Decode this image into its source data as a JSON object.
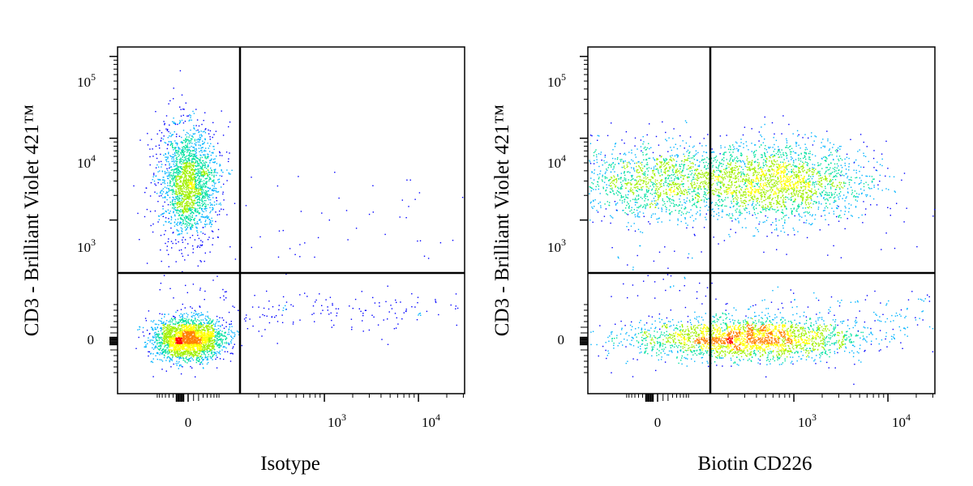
{
  "chart_data": [
    {
      "type": "scatter",
      "subtype": "flow-cytometry-pseudocolor-density-dot-plot",
      "xlabel": "Isotype",
      "ylabel": "CD3 - Brilliant Violet 421™",
      "x_scale": "biexponential",
      "y_scale": "biexponential",
      "x_tick_labels": [
        {
          "base": "0",
          "exp": ""
        },
        {
          "base": "10",
          "exp": "3"
        },
        {
          "base": "10",
          "exp": "4"
        }
      ],
      "y_tick_labels": [
        {
          "base": "0",
          "exp": ""
        },
        {
          "base": "10",
          "exp": "3"
        },
        {
          "base": "10",
          "exp": "4"
        },
        {
          "base": "10",
          "exp": "5"
        }
      ],
      "quadrant_gate": {
        "x": 150,
        "y": 500
      },
      "populations": [
        {
          "name_hint": "CD3+ cells",
          "x_center": 0,
          "y_center": 3000,
          "density": "medium-high",
          "peak_color": "yellow-green"
        },
        {
          "name_hint": "CD3- cells",
          "x_center": 0,
          "y_center": 0,
          "density": "high",
          "peak_color": "red"
        }
      ],
      "color_scale": [
        "#0000ff",
        "#00b4ff",
        "#00e0a0",
        "#a0f000",
        "#ffff00",
        "#ff8000",
        "#ff0000"
      ]
    },
    {
      "type": "scatter",
      "subtype": "flow-cytometry-pseudocolor-density-dot-plot",
      "xlabel": "Biotin CD226",
      "ylabel": "CD3 - Brilliant Violet 421™",
      "x_scale": "biexponential",
      "y_scale": "biexponential",
      "x_tick_labels": [
        {
          "base": "0",
          "exp": ""
        },
        {
          "base": "10",
          "exp": "3"
        },
        {
          "base": "10",
          "exp": "4"
        }
      ],
      "y_tick_labels": [
        {
          "base": "0",
          "exp": ""
        },
        {
          "base": "10",
          "exp": "3"
        },
        {
          "base": "10",
          "exp": "4"
        },
        {
          "base": "10",
          "exp": "5"
        }
      ],
      "quadrant_gate": {
        "x": 150,
        "y": 500
      },
      "populations": [
        {
          "name_hint": "CD3+ CD226 low",
          "x_center": 0,
          "y_center": 3000,
          "density": "medium",
          "peak_color": "green"
        },
        {
          "name_hint": "CD3+ CD226 high",
          "x_center": 700,
          "y_center": 3000,
          "density": "medium-high",
          "peak_color": "yellow-green"
        },
        {
          "name_hint": "CD3- cells",
          "x_center": 300,
          "y_center": 0,
          "density": "high",
          "peak_color": "red"
        }
      ],
      "color_scale": [
        "#0000ff",
        "#00b4ff",
        "#00e0a0",
        "#a0f000",
        "#ffff00",
        "#ff8000",
        "#ff0000"
      ]
    }
  ]
}
